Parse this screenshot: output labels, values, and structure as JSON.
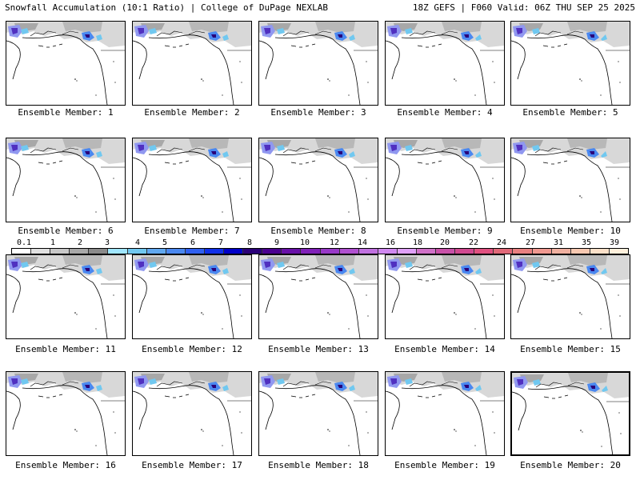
{
  "header": {
    "left": "Snowfall Accumulation (10:1 Ratio) | College of DuPage NEXLAB",
    "right": "18Z GEFS | F060 Valid: 06Z THU SEP 25 2025"
  },
  "panels": [
    {
      "label": "Ensemble Member: 1"
    },
    {
      "label": "Ensemble Member: 2"
    },
    {
      "label": "Ensemble Member: 3"
    },
    {
      "label": "Ensemble Member: 4"
    },
    {
      "label": "Ensemble Member: 5"
    },
    {
      "label": "Ensemble Member: 6"
    },
    {
      "label": "Ensemble Member: 7"
    },
    {
      "label": "Ensemble Member: 8"
    },
    {
      "label": "Ensemble Member: 9"
    },
    {
      "label": "Ensemble Member: 10"
    },
    {
      "label": "Ensemble Member: 11"
    },
    {
      "label": "Ensemble Member: 12"
    },
    {
      "label": "Ensemble Member: 13"
    },
    {
      "label": "Ensemble Member: 14"
    },
    {
      "label": "Ensemble Member: 15"
    },
    {
      "label": "Ensemble Member: 16"
    },
    {
      "label": "Ensemble Member: 17"
    },
    {
      "label": "Ensemble Member: 18"
    },
    {
      "label": "Ensemble Member: 19"
    },
    {
      "label": "Ensemble Member: 20"
    }
  ],
  "colorbar": {
    "labels": [
      "0.1",
      "1",
      "2",
      "3",
      "4",
      "5",
      "6",
      "7",
      "8",
      "9",
      "10",
      "12",
      "14",
      "16",
      "18",
      "20",
      "22",
      "24",
      "27",
      "31",
      "35",
      "39"
    ],
    "colors": [
      "#ffffff",
      "#e0e0e0",
      "#c8c8c8",
      "#a8a8a8",
      "#8a8a8a",
      "#a0e6ff",
      "#70c8f0",
      "#60a8f0",
      "#4a88f0",
      "#3060f0",
      "#1030e8",
      "#0000c8",
      "#2a0078",
      "#4a0090",
      "#6810a8",
      "#8020b8",
      "#9838c8",
      "#b050d0",
      "#c070e0",
      "#d088f0",
      "#e0a0f8",
      "#d070c8",
      "#c850a8",
      "#d04890",
      "#e05080",
      "#e06878",
      "#e88080",
      "#f09890",
      "#f0b0a0",
      "#f8c8b0",
      "#fce0c8",
      "#fff0dc"
    ]
  }
}
